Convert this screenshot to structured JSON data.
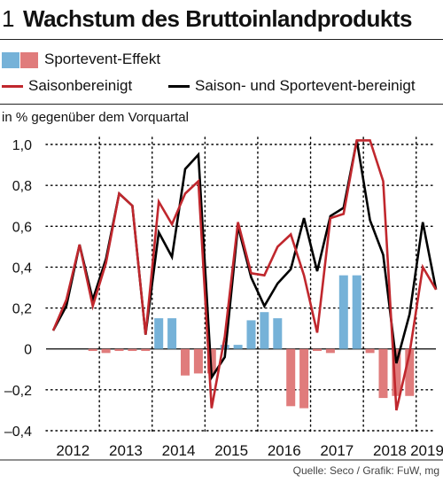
{
  "header": {
    "number": "1",
    "title": "Wachstum des Bruttoinlandprodukts"
  },
  "legend": {
    "sport": "Sportevent-Effekt",
    "sa": "Saisonbereinigt",
    "sasp": "Saison- und Sportevent-bereinigt"
  },
  "unit_label": "in % gegenüber dem Vorquartal",
  "source": "Quelle: Seco / Grafik: FuW, mg",
  "colors": {
    "blue": "#76b2d8",
    "pink": "#e07c7c",
    "red": "#c0272d",
    "black": "#000000"
  },
  "chart_data": {
    "type": "line",
    "title": "Wachstum des Bruttoinlandprodukts",
    "ylabel": "in % gegenüber dem Vorquartal",
    "ylim": [
      -0.4,
      1.0
    ],
    "yticks": [
      -0.4,
      -0.2,
      0,
      0.2,
      0.4,
      0.6,
      0.8,
      1.0
    ],
    "ytick_labels": [
      "–0,4",
      "–0,2",
      "0",
      "0,2",
      "0,4",
      "0,6",
      "0,8",
      "1,0"
    ],
    "years": [
      "2012",
      "2013",
      "2014",
      "2015",
      "2016",
      "2017",
      "2018",
      "2019"
    ],
    "quarters": [
      "2012Q1",
      "2012Q2",
      "2012Q3",
      "2012Q4",
      "2013Q1",
      "2013Q2",
      "2013Q3",
      "2013Q4",
      "2014Q1",
      "2014Q2",
      "2014Q3",
      "2014Q4",
      "2015Q1",
      "2015Q2",
      "2015Q3",
      "2015Q4",
      "2016Q1",
      "2016Q2",
      "2016Q3",
      "2016Q4",
      "2017Q1",
      "2017Q2",
      "2017Q3",
      "2017Q4",
      "2018Q1",
      "2018Q2",
      "2018Q3",
      "2018Q4",
      "2019Q1",
      "2019Q2"
    ],
    "grid": true,
    "series": [
      {
        "name": "Sportevent-Effekt",
        "type": "bar",
        "values": [
          0,
          0,
          0,
          -0.01,
          -0.02,
          -0.01,
          -0.01,
          -0.01,
          0.15,
          0.15,
          -0.13,
          -0.12,
          -0.12,
          0.02,
          0.02,
          0.14,
          0.18,
          0.15,
          -0.28,
          -0.29,
          -0.01,
          -0.02,
          0.36,
          0.36,
          -0.02,
          -0.24,
          -0.23,
          -0.23,
          0,
          0
        ]
      },
      {
        "name": "Saisonbereinigt",
        "type": "line",
        "values": [
          0.09,
          0.24,
          0.51,
          0.21,
          0.42,
          0.76,
          0.7,
          0.07,
          0.72,
          0.61,
          0.76,
          0.82,
          -0.29,
          0.06,
          0.62,
          0.37,
          0.36,
          0.5,
          0.56,
          0.36,
          0.08,
          0.64,
          0.66,
          1.02,
          1.02,
          0.82,
          -0.3,
          -0.02,
          0.4,
          0.29
        ]
      },
      {
        "name": "Saison- und Sportevent-bereinigt",
        "type": "line",
        "values": [
          0.09,
          0.21,
          0.51,
          0.24,
          0.44,
          0.76,
          0.7,
          0.07,
          0.57,
          0.45,
          0.88,
          0.95,
          -0.14,
          -0.04,
          0.6,
          0.35,
          0.21,
          0.32,
          0.39,
          0.64,
          0.38,
          0.65,
          0.69,
          1.02,
          0.63,
          0.46,
          -0.07,
          0.17,
          0.62,
          0.29
        ]
      }
    ]
  }
}
